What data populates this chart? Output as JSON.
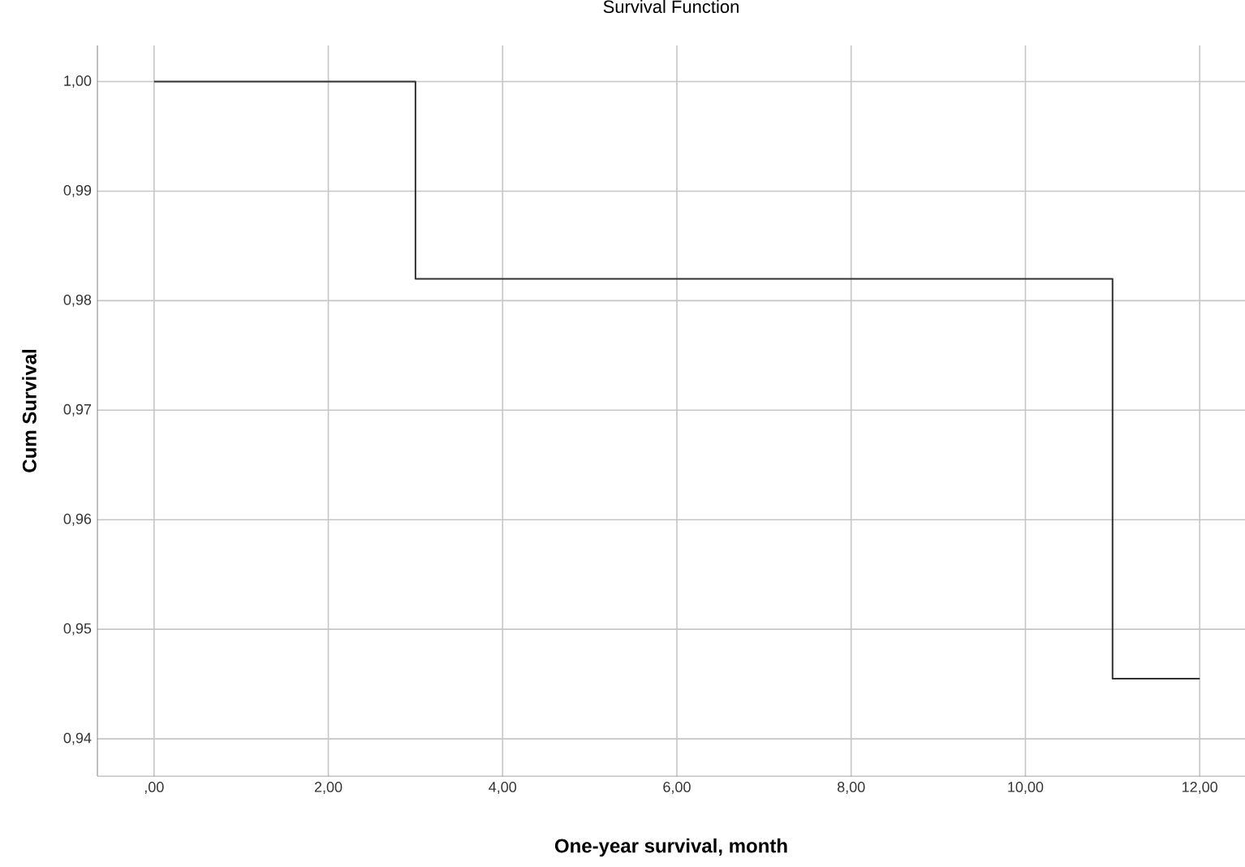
{
  "chart_data": {
    "type": "step",
    "title": "Survival Function",
    "xlabel": "One-year survival, month",
    "ylabel": "Cum Survival",
    "x": [
      0,
      3,
      11,
      12
    ],
    "series": [
      {
        "color": "#333333",
        "values": [
          1.0,
          0.982,
          0.9455,
          0.9455
        ]
      }
    ],
    "xlim": [
      -0.65,
      12.52
    ],
    "ylim": [
      0.9366,
      1.0033
    ],
    "xticks": [
      {
        "value": 0,
        "label": ",00"
      },
      {
        "value": 2,
        "label": "2,00"
      },
      {
        "value": 4,
        "label": "4,00"
      },
      {
        "value": 6,
        "label": "6,00"
      },
      {
        "value": 8,
        "label": "8,00"
      },
      {
        "value": 10,
        "label": "10,00"
      },
      {
        "value": 12,
        "label": "12,00"
      }
    ],
    "yticks": [
      {
        "value": 0.94,
        "label": "0,94"
      },
      {
        "value": 0.95,
        "label": "0,95"
      },
      {
        "value": 0.96,
        "label": "0,96"
      },
      {
        "value": 0.97,
        "label": "0,97"
      },
      {
        "value": 0.98,
        "label": "0,98"
      },
      {
        "value": 0.99,
        "label": "0,99"
      },
      {
        "value": 1.0,
        "label": "1,00"
      }
    ],
    "grid": true,
    "line_style": "solid"
  }
}
